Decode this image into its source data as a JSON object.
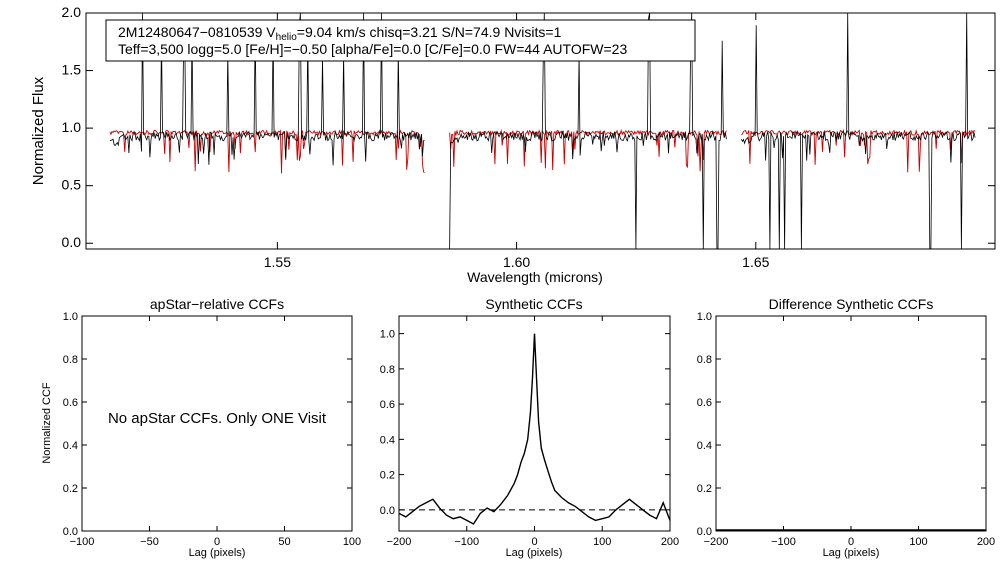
{
  "chart_data": [
    {
      "type": "line",
      "panel": "spectrum",
      "title": "",
      "xlabel": "Wavelength (microns)",
      "ylabel": "Normalized Flux",
      "xlim": [
        1.51,
        1.7
      ],
      "ylim": [
        -0.05,
        2.0
      ],
      "x_tick_labels": [
        "1.55",
        "1.60",
        "1.65"
      ],
      "x_tick_values": [
        1.55,
        1.6,
        1.65
      ],
      "y_tick_labels": [
        "0.0",
        "0.5",
        "1.0",
        "1.5",
        "2.0"
      ],
      "y_tick_values": [
        0.0,
        0.5,
        1.0,
        1.5,
        2.0
      ],
      "info_box": {
        "line1_parts": [
          "2M12480647−0810539  V",
          "helio",
          "=9.04 km/s  chisq=3.21  S/N=74.9  Nvisits=1"
        ],
        "line2": "Teff=3,500 logg=5.0 [Fe/H]=−0.50 [alpha/Fe]=0.0 [C/Fe]=0.0 FW=44 AUTOFW=23"
      },
      "chip_ranges": [
        [
          1.515,
          1.581
        ],
        [
          1.586,
          1.644
        ],
        [
          1.647,
          1.696
        ]
      ],
      "series": [
        {
          "name": "observed",
          "color": "#000000",
          "continuum": 0.93,
          "spike_wavelengths": [
            1.5218,
            1.5257,
            1.5305,
            1.5322,
            1.5397,
            1.5453,
            1.5491,
            1.5547,
            1.5564,
            1.5594,
            1.5639,
            1.568,
            1.5717,
            1.5752,
            1.6057,
            1.613,
            1.6277,
            1.6365,
            1.643,
            1.65,
            1.6693,
            1.694
          ],
          "dip_wavelengths": [
            1.581,
            1.586,
            1.625,
            1.639,
            1.642,
            1.653,
            1.655,
            1.656,
            1.6595,
            1.6865,
            1.693
          ]
        },
        {
          "name": "model",
          "color": "#cc0000",
          "continuum": 0.96
        }
      ]
    },
    {
      "type": "line",
      "panel": "apstar-ccf",
      "title": "apStar−relative CCFs",
      "xlabel": "Lag (pixels)",
      "ylabel": "Normalized CCF",
      "xlim": [
        -100,
        100
      ],
      "ylim": [
        0,
        1.0
      ],
      "x_tick_labels": [
        "−100",
        "−50",
        "0",
        "50",
        "100"
      ],
      "x_tick_values": [
        -100,
        -50,
        0,
        50,
        100
      ],
      "y_tick_labels": [
        "0.0",
        "0.2",
        "0.4",
        "0.6",
        "0.8",
        "1.0"
      ],
      "y_tick_values": [
        0.0,
        0.2,
        0.4,
        0.6,
        0.8,
        1.0
      ],
      "annotation": "No apStar CCFs.  Only ONE Visit",
      "series": []
    },
    {
      "type": "line",
      "panel": "synthetic-ccf",
      "title": "Synthetic CCFs",
      "xlabel": "Lag (pixels)",
      "xlim": [
        -200,
        200
      ],
      "ylim": [
        -0.12,
        1.1
      ],
      "x_tick_labels": [
        "−200",
        "−100",
        "0",
        "100",
        "200"
      ],
      "x_tick_values": [
        -200,
        -100,
        0,
        100,
        200
      ],
      "y_tick_labels": [
        "0.0",
        "0.2",
        "0.4",
        "0.6",
        "0.8",
        "1.0"
      ],
      "y_tick_values": [
        0.0,
        0.2,
        0.4,
        0.6,
        0.8,
        1.0
      ],
      "zero_line": true,
      "series": [
        {
          "name": "ccf",
          "color": "#000000",
          "x": [
            -200,
            -190,
            -180,
            -170,
            -160,
            -150,
            -140,
            -130,
            -120,
            -110,
            -100,
            -90,
            -80,
            -70,
            -60,
            -50,
            -40,
            -30,
            -25,
            -20,
            -15,
            -10,
            -6,
            -3,
            0,
            3,
            6,
            10,
            15,
            20,
            25,
            30,
            40,
            50,
            60,
            70,
            80,
            90,
            100,
            110,
            120,
            130,
            140,
            150,
            160,
            170,
            180,
            190,
            200
          ],
          "y": [
            -0.02,
            -0.04,
            -0.01,
            0.02,
            0.04,
            0.06,
            0.01,
            -0.03,
            -0.05,
            -0.04,
            -0.06,
            -0.08,
            -0.02,
            0.01,
            -0.01,
            0.03,
            0.08,
            0.15,
            0.2,
            0.27,
            0.32,
            0.4,
            0.55,
            0.75,
            1.0,
            0.75,
            0.5,
            0.35,
            0.28,
            0.22,
            0.16,
            0.11,
            0.07,
            0.04,
            0.02,
            -0.01,
            -0.04,
            -0.06,
            -0.05,
            -0.04,
            0.0,
            0.03,
            0.06,
            0.03,
            0.0,
            -0.03,
            -0.05,
            0.04,
            -0.06
          ]
        }
      ]
    },
    {
      "type": "line",
      "panel": "difference-ccf",
      "title": "Difference Synthetic CCFs",
      "xlabel": "Lag (pixels)",
      "xlim": [
        -200,
        200
      ],
      "ylim": [
        0,
        1.0
      ],
      "x_tick_labels": [
        "−200",
        "−100",
        "0",
        "100",
        "200"
      ],
      "x_tick_values": [
        -200,
        -100,
        0,
        100,
        200
      ],
      "y_tick_labels": [
        "0.0",
        "0.2",
        "0.4",
        "0.6",
        "0.8",
        "1.0"
      ],
      "y_tick_values": [
        0.0,
        0.2,
        0.4,
        0.6,
        0.8,
        1.0
      ],
      "series": []
    }
  ]
}
